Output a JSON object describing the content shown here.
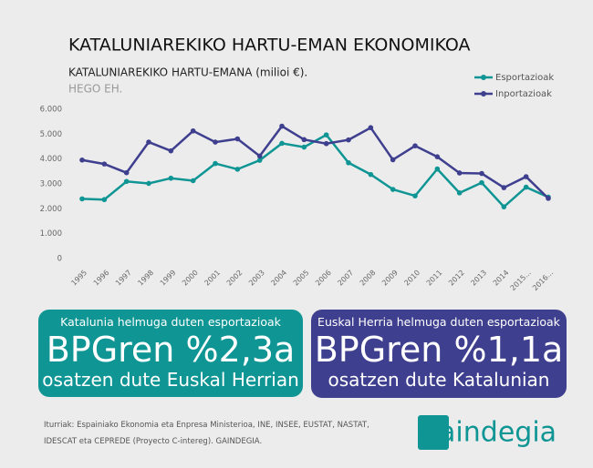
{
  "header": {
    "title": "KATALUNIAREKIKO HARTU-EMAN EKONOMIKOA"
  },
  "chart_data": {
    "type": "line",
    "title": "KATALUNIAREKIKO HARTU-EMANA (milioi €).",
    "subtitle": "HEGO EH.",
    "categories": [
      "1995",
      "1996",
      "1997",
      "1998",
      "1999",
      "2000",
      "2001",
      "2002",
      "2003",
      "2004",
      "2005",
      "2006",
      "2007",
      "2008",
      "2009",
      "2010",
      "2011",
      "2012",
      "2013",
      "2014",
      "2015...",
      "2016..."
    ],
    "series": [
      {
        "name": "Esportazioak",
        "color": "#0e9594",
        "values": [
          2400,
          2370,
          3100,
          3020,
          3230,
          3130,
          3820,
          3590,
          3950,
          4630,
          4480,
          4970,
          3850,
          3380,
          2780,
          2520,
          3600,
          2640,
          3050,
          2080,
          2870,
          2470
        ]
      },
      {
        "name": "Inportazioak",
        "color": "#3f3f8f",
        "values": [
          3960,
          3800,
          3450,
          4680,
          4330,
          5130,
          4680,
          4810,
          4120,
          5320,
          4780,
          4620,
          4770,
          5260,
          3970,
          4530,
          4090,
          3440,
          3420,
          2850,
          3290,
          2420
        ]
      }
    ],
    "ylim": [
      0,
      6000
    ],
    "yticks": [
      0,
      {
        "value": 1000,
        "label": "1.000"
      },
      {
        "value": 2000,
        "label": "2.000"
      },
      {
        "value": 3000,
        "label": "3.000"
      },
      {
        "value": 4000,
        "label": "4.000"
      },
      {
        "value": 5000,
        "label": "5.000"
      },
      {
        "value": 6000,
        "label": "6.000"
      }
    ],
    "grid": false,
    "legend": "top-right"
  },
  "boxes": [
    {
      "label": "Katalunia helmuga duten esportazioak",
      "headline": "BPGren %2,3a",
      "text": "osatzen dute Euskal Herrian",
      "color": "#0e9594"
    },
    {
      "label": "Euskal Herria helmuga duten esportazioak",
      "headline": "BPGren %1,1a",
      "text": "osatzen dute Katalunian",
      "color": "#3f3f8f"
    }
  ],
  "source": [
    "Iturriak: Espainiako Ekonomia eta Enpresa Ministerioa, INE, INSEE, EUSTAT, NASTAT,",
    "IDESCAT eta CEPREDE (Proyecto C-intereg). GAINDEGIA."
  ],
  "logo": "gaindegia"
}
